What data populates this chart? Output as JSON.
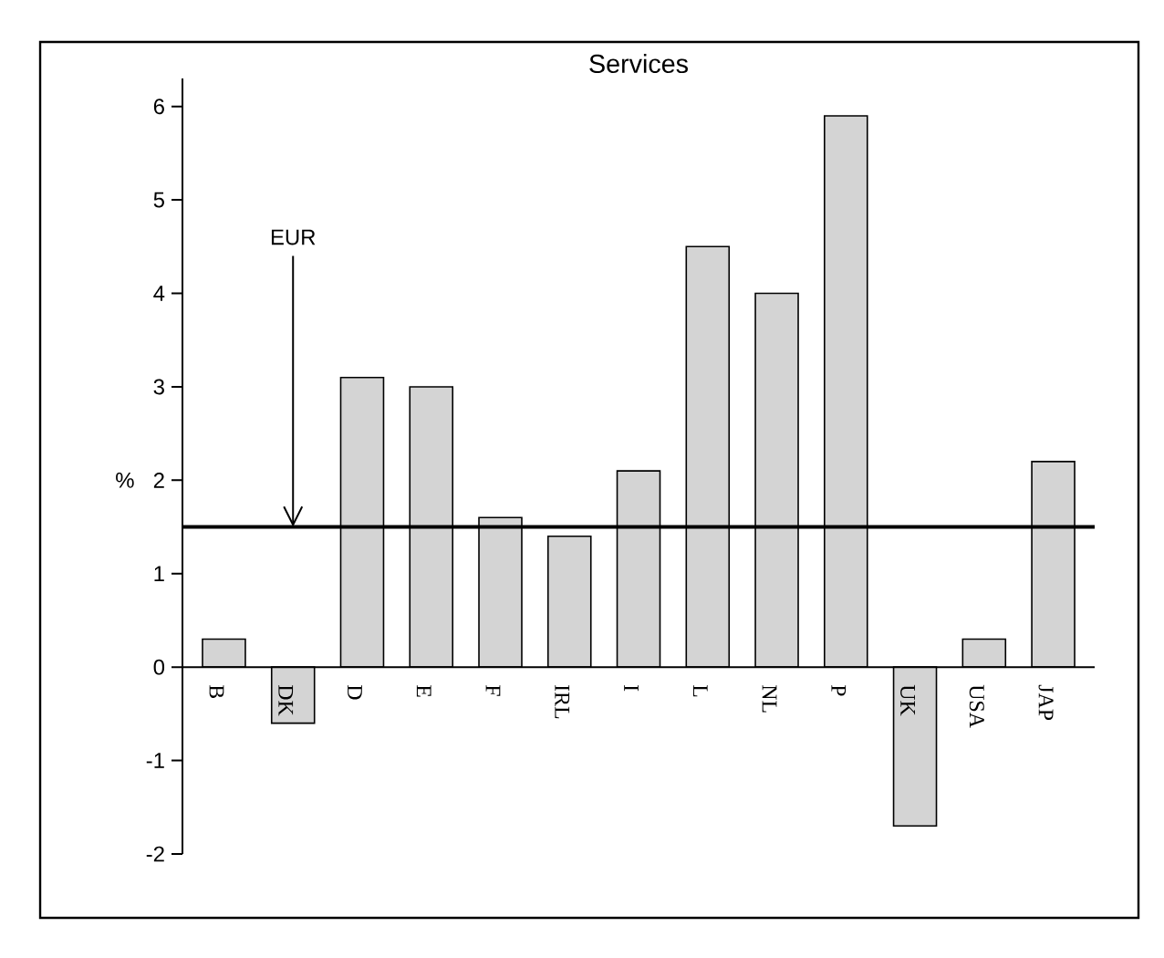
{
  "chart_data": {
    "type": "bar",
    "title": "Services",
    "ylabel": "%",
    "categories": [
      "B",
      "DK",
      "D",
      "E",
      "F",
      "IRL",
      "I",
      "L",
      "NL",
      "P",
      "UK",
      "USA",
      "JAP"
    ],
    "values": [
      0.3,
      -0.6,
      3.1,
      3.0,
      1.6,
      1.4,
      2.1,
      4.5,
      4.0,
      5.9,
      -1.7,
      0.3,
      2.2
    ],
    "color": "#d4d4d4",
    "ylim": [
      -2,
      6.3
    ],
    "yticks": [
      -2,
      -1,
      0,
      1,
      2,
      3,
      4,
      5,
      6
    ],
    "ref_lines": [
      {
        "axis": "y",
        "value": 1.5,
        "label": "EUR",
        "color": "#000000"
      }
    ],
    "grid": false
  }
}
